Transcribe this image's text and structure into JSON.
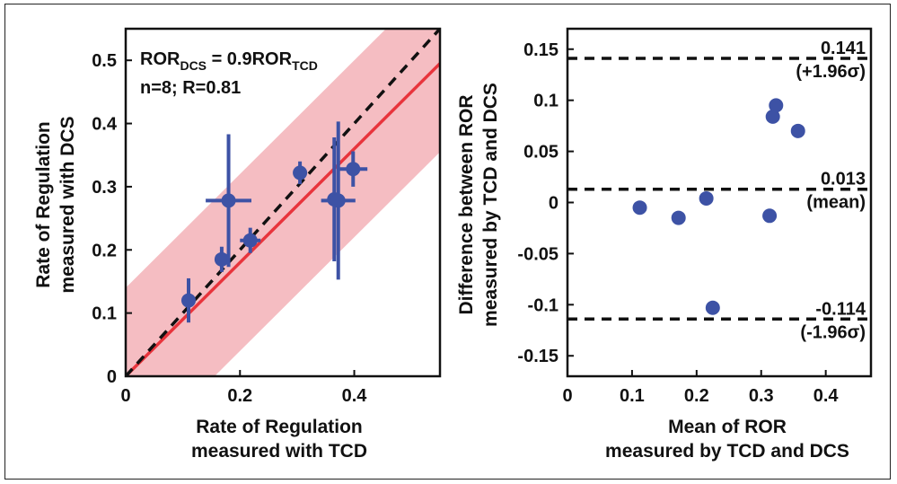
{
  "chart_data": [
    {
      "type": "scatter",
      "xlabel": [
        "Rate of Regulation",
        "measured with TCD"
      ],
      "ylabel": [
        "Rate of Regulation",
        "measured with DCS"
      ],
      "xlim": [
        0,
        0.55
      ],
      "ylim": [
        0,
        0.55
      ],
      "xticks": [
        0,
        0.2,
        0.4
      ],
      "xtick_labels": [
        "0",
        "0.2",
        "0.4"
      ],
      "yticks": [
        0,
        0.1,
        0.2,
        0.3,
        0.4,
        0.5
      ],
      "ytick_labels": [
        "0",
        "0.1",
        "0.2",
        "0.3",
        "0.4",
        "0.5"
      ],
      "equation": {
        "lhs_main": "ROR",
        "lhs_sub": "DCS",
        "mid": " = 0.9ROR",
        "rhs_sub": "TCD"
      },
      "stats": "n=8; R=0.81",
      "identity_line": {
        "slope": 1,
        "intercept": 0,
        "color": "#111111"
      },
      "fit_line": {
        "slope": 0.9,
        "intercept": 0,
        "color": "#e8343c"
      },
      "confidence_band": {
        "upper_intercept": 0.14,
        "lower_intercept": -0.14,
        "slope": 0.9,
        "color": "#f2a7ad"
      },
      "point_color": "#3d52a5",
      "points": [
        {
          "x": 0.11,
          "y": 0.12,
          "xerr": 0.012,
          "yerr": 0.035
        },
        {
          "x": 0.168,
          "y": 0.185,
          "xerr": 0.008,
          "yerr": 0.02
        },
        {
          "x": 0.18,
          "y": 0.278,
          "xerr": 0.04,
          "yerr": 0.105
        },
        {
          "x": 0.218,
          "y": 0.215,
          "xerr": 0.018,
          "yerr": 0.02
        },
        {
          "x": 0.305,
          "y": 0.322,
          "xerr": 0.012,
          "yerr": 0.018
        },
        {
          "x": 0.365,
          "y": 0.28,
          "xerr": 0.01,
          "yerr": 0.098
        },
        {
          "x": 0.372,
          "y": 0.278,
          "xerr": 0.03,
          "yerr": 0.125
        },
        {
          "x": 0.398,
          "y": 0.328,
          "xerr": 0.025,
          "yerr": 0.028
        }
      ]
    },
    {
      "type": "scatter",
      "xlabel": [
        "Mean of ROR",
        "measured by TCD and DCS"
      ],
      "ylabel": [
        "Difference between ROR",
        "measured by TCD and DCS"
      ],
      "xlim": [
        0,
        0.47
      ],
      "ylim": [
        -0.17,
        0.17
      ],
      "xticks": [
        0,
        0.1,
        0.2,
        0.3,
        0.4
      ],
      "xtick_labels": [
        "0",
        "0.1",
        "0.2",
        "0.3",
        "0.4"
      ],
      "yticks": [
        0.15,
        0.1,
        0.05,
        0,
        -0.05,
        -0.1,
        -0.15
      ],
      "ytick_labels": [
        "0.15",
        "0.1",
        "0.05",
        "0",
        "-0.05",
        "-0.1",
        "-0.15"
      ],
      "point_color": "#3d52a5",
      "reference_lines": [
        {
          "y": 0.141,
          "value_label": "0.141",
          "desc_label": "(+1.96σ)"
        },
        {
          "y": 0.013,
          "value_label": "0.013",
          "desc_label": "(mean)"
        },
        {
          "y": -0.114,
          "value_label": "-0.114",
          "desc_label": "(-1.96σ)"
        }
      ],
      "points": [
        {
          "x": 0.112,
          "y": -0.005
        },
        {
          "x": 0.172,
          "y": -0.015
        },
        {
          "x": 0.215,
          "y": 0.004
        },
        {
          "x": 0.225,
          "y": -0.103
        },
        {
          "x": 0.313,
          "y": -0.013
        },
        {
          "x": 0.318,
          "y": 0.084
        },
        {
          "x": 0.323,
          "y": 0.095
        },
        {
          "x": 0.357,
          "y": 0.07
        }
      ]
    }
  ]
}
